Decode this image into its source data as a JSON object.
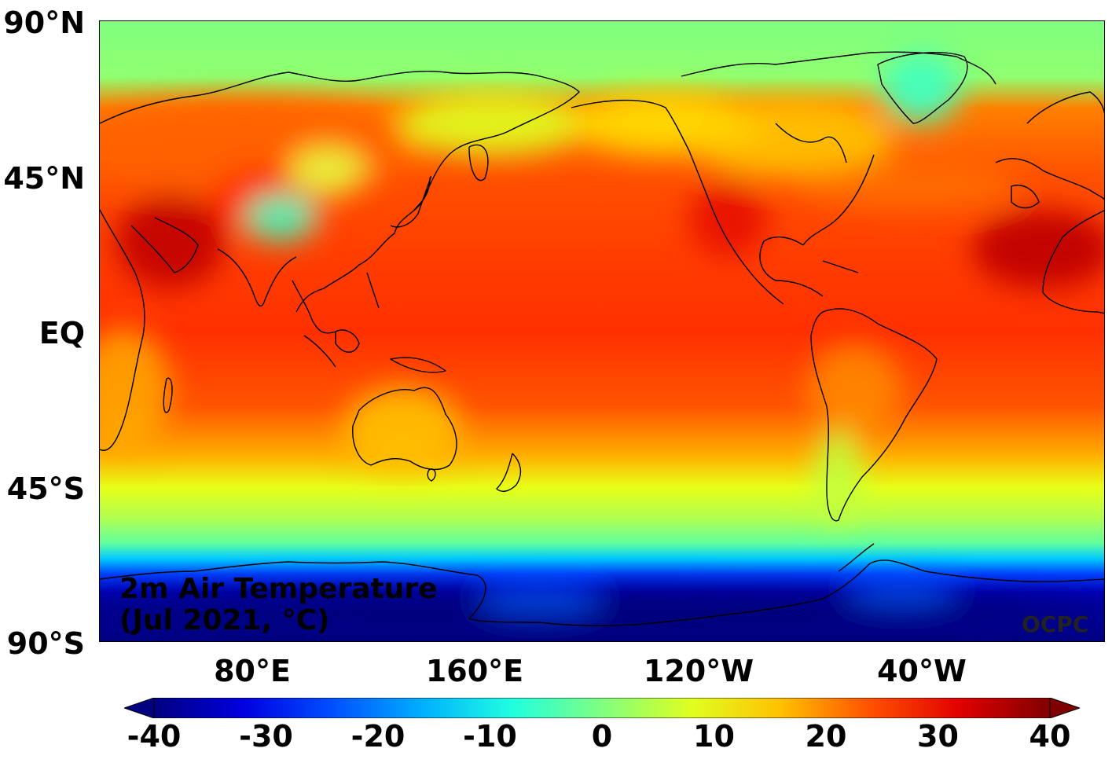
{
  "title_line1": "2m Air Temperature",
  "title_line2": "(Jul 2021, °C)",
  "credit": "OCPC",
  "lat_ticks": [
    "90°N",
    "45°N",
    "EQ",
    "45°S",
    "90°S"
  ],
  "lon_ticks": [
    "80°E",
    "160°E",
    "120°W",
    "40°W"
  ],
  "colorbar": {
    "min": -40,
    "max": 40,
    "extend": "both",
    "ticks": [
      "-40",
      "-30",
      "-20",
      "-10",
      "0",
      "10",
      "20",
      "30",
      "40"
    ],
    "colors": [
      "#000080",
      "#0000e0",
      "#0050ff",
      "#00b0ff",
      "#20ffe0",
      "#80ff80",
      "#e0ff20",
      "#ffc000",
      "#ff5000",
      "#e00000",
      "#800000"
    ]
  },
  "map": {
    "projection": "PlateCarree",
    "central_longitude": 200,
    "colormap": "jet"
  }
}
